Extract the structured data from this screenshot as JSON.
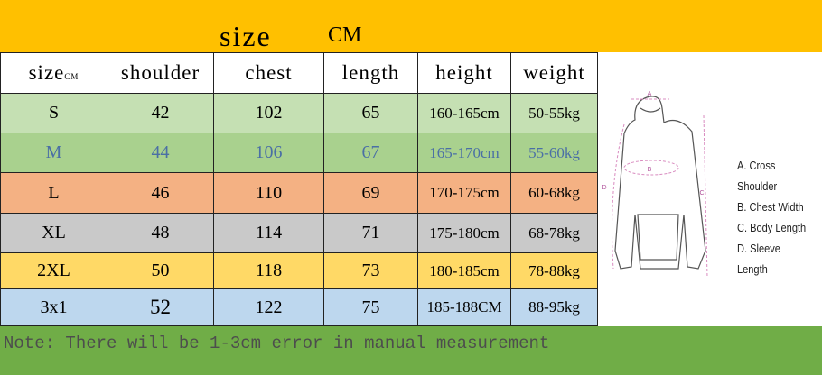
{
  "header": {
    "title": "size",
    "unit": "CM"
  },
  "table": {
    "columns": [
      "size",
      "shoulder",
      "chest",
      "length",
      "height",
      "weight"
    ],
    "size_unit": "CM",
    "rows": [
      [
        "S",
        "42",
        "102",
        "65",
        "160-165cm",
        "50-55kg"
      ],
      [
        "M",
        "44",
        "106",
        "67",
        "165-170cm",
        "55-60kg"
      ],
      [
        "L",
        "46",
        "110",
        "69",
        "170-175cm",
        "60-68kg"
      ],
      [
        "XL",
        "48",
        "114",
        "71",
        "175-180cm",
        "68-78kg"
      ],
      [
        "2XL",
        "50",
        "118",
        "73",
        "180-185cm",
        "78-88kg"
      ],
      [
        "3x1",
        "52",
        "122",
        "75",
        "185-188CM",
        "88-95kg"
      ]
    ]
  },
  "diagram": {
    "marks": [
      "A",
      "B",
      "C",
      "D"
    ],
    "legend": [
      "A. Cross Shoulder",
      "B. Chest Width",
      "C. Body Length",
      "D. Sleeve Length"
    ]
  },
  "note": "Note: There will be 1-3cm error in manual measurement"
}
